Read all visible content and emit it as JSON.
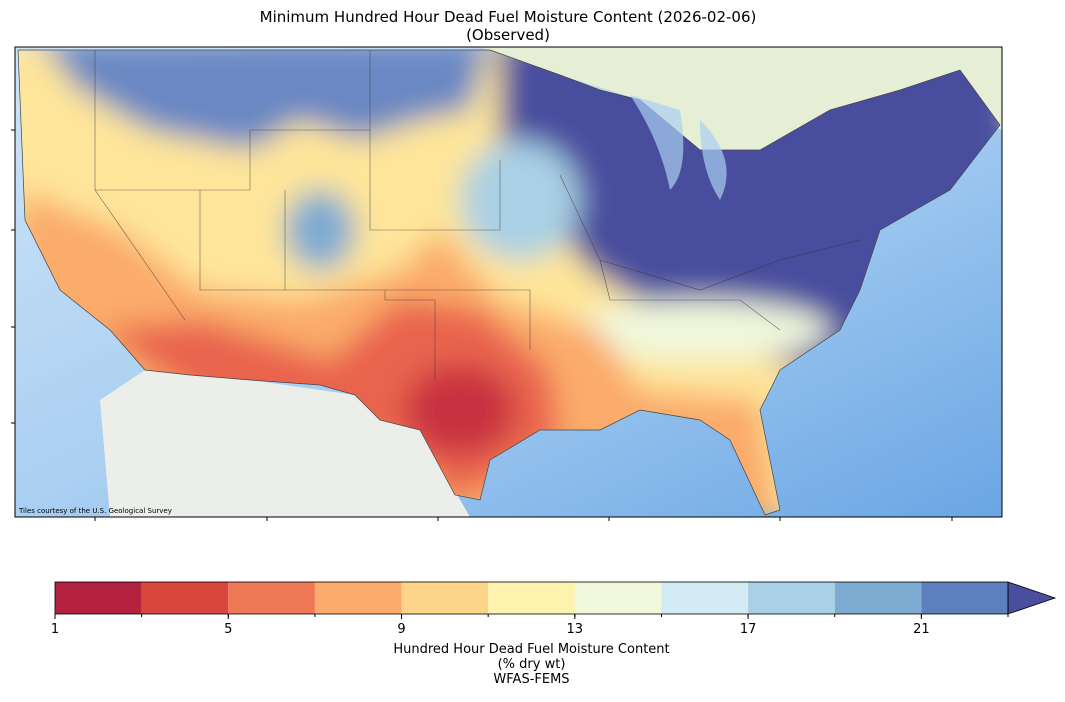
{
  "title": "Minimum Hundred Hour Dead Fuel Moisture Content (2026-02-06)",
  "subtitle": "(Observed)",
  "attribution": "Tiles courtesy of the U.S. Geological Survey",
  "colorbar": {
    "bounds": [
      1,
      3,
      5,
      7,
      9,
      11,
      13,
      15,
      17,
      19,
      21,
      23
    ],
    "colors": [
      "#b5223f",
      "#d8473d",
      "#ef7856",
      "#fbab6b",
      "#fed48a",
      "#fef3ae",
      "#f1f8dc",
      "#d3ebf3",
      "#a9d0e4",
      "#7eabd2",
      "#5e7fbd"
    ],
    "extend_color": "#4a4e9e",
    "ticks": [
      1,
      5,
      9,
      13,
      17,
      21
    ],
    "label": [
      "Hundred Hour Dead Fuel Moisture Content",
      "(% dry wt)",
      "WFAS-FEMS"
    ]
  }
}
